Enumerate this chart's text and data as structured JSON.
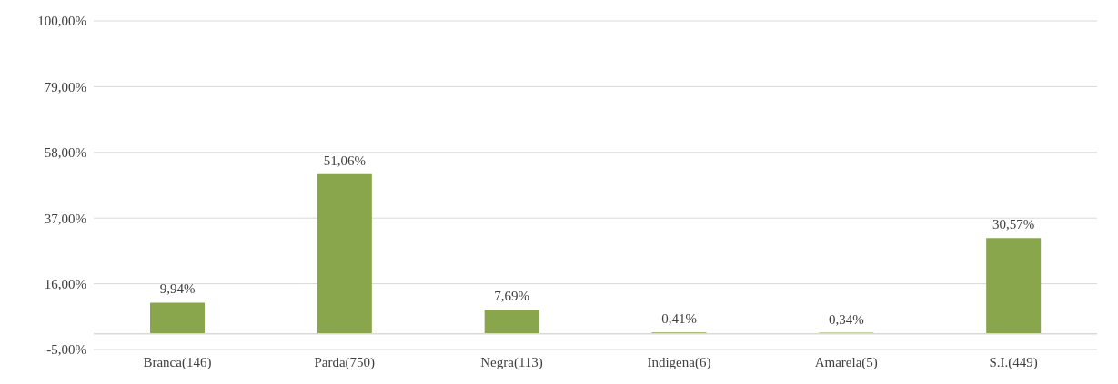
{
  "chart_data": {
    "type": "bar",
    "categories": [
      "Branca(146)",
      "Parda(750)",
      "Negra(113)",
      "Indigena(6)",
      "Amarela(5)",
      "S.I.(449)"
    ],
    "values": [
      9.94,
      51.06,
      7.69,
      0.41,
      0.34,
      30.57
    ],
    "value_labels": [
      "9,94%",
      "51,06%",
      "7,69%",
      "0,41%",
      "0,34%",
      "30,57%"
    ],
    "color": "#8aa64c",
    "ylim": [
      -5,
      100
    ],
    "yticks": [
      {
        "value": -5,
        "label": "-5,00%"
      },
      {
        "value": 16,
        "label": "16,00%"
      },
      {
        "value": 37,
        "label": "37,00%"
      },
      {
        "value": 58,
        "label": "58,00%"
      },
      {
        "value": 79,
        "label": "79,00%"
      },
      {
        "value": 100,
        "label": "100,00%"
      }
    ],
    "ref_lines": [
      {
        "axis": "y",
        "value": 0,
        "color": "#d9d9d9"
      }
    ],
    "grid": "y"
  }
}
